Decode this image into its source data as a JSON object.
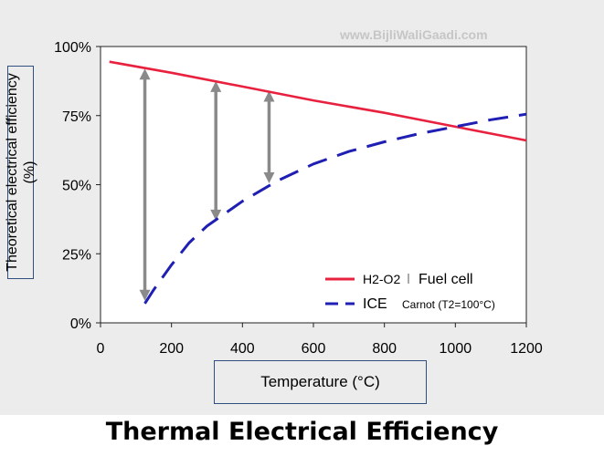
{
  "caption": "Thermal Electrical Efficiency",
  "watermark": "www.BijliWaliGaadi.com",
  "chart_data": {
    "type": "line",
    "xlabel": "Temperature (°C)",
    "ylabel": "Theoretical electrical efficiency (%)",
    "xlim": [
      0,
      1200
    ],
    "ylim": [
      0,
      100
    ],
    "x_ticks": [
      0,
      200,
      400,
      600,
      800,
      1000,
      1200
    ],
    "y_ticks": [
      0,
      25,
      50,
      75,
      100
    ],
    "y_tick_labels": [
      "0%",
      "25%",
      "50%",
      "75%",
      "100%"
    ],
    "grid": false,
    "legend_position": "bottom-right",
    "series": [
      {
        "name": "H2-O2 Fuel cell",
        "legend_label_main": "H2-O2",
        "legend_label_extra": "Fuel cell",
        "color": "#e8213f",
        "style": "solid",
        "x": [
          25,
          200,
          400,
          600,
          800,
          1000,
          1200
        ],
        "y": [
          94.5,
          90.5,
          85.5,
          80.5,
          76,
          71,
          66
        ]
      },
      {
        "name": "ICE Carnot (T2=100°C)",
        "legend_label_main": "ICE",
        "legend_label_extra": "Carnot (T2=100°C)",
        "color": "#1f1fb4",
        "style": "dashed",
        "x": [
          125,
          150,
          200,
          250,
          300,
          400,
          500,
          600,
          700,
          800,
          900,
          1000,
          1100,
          1200
        ],
        "y": [
          7,
          12,
          21,
          29,
          35,
          44,
          51.5,
          57.5,
          62,
          65.5,
          68.5,
          71,
          73.5,
          75.5
        ]
      }
    ],
    "arrows": [
      {
        "x": 125,
        "y_top": 92,
        "y_bottom": 8
      },
      {
        "x": 325,
        "y_top": 87.5,
        "y_bottom": 37
      },
      {
        "x": 475,
        "y_top": 84,
        "y_bottom": 50.5
      }
    ],
    "arrow_color": "#8a8a8a"
  }
}
